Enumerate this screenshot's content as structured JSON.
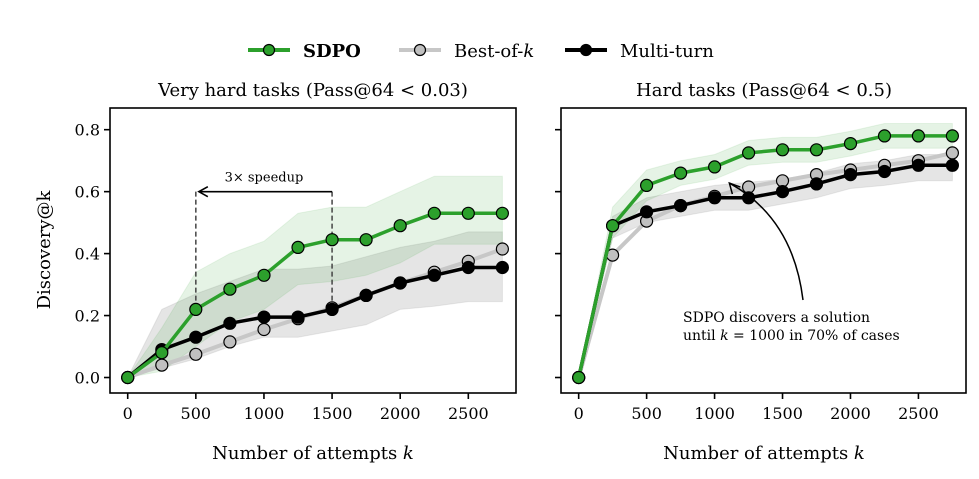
{
  "legend": {
    "items": [
      {
        "key": "sdpo",
        "label": "SDPO",
        "bold": true
      },
      {
        "key": "bestofk",
        "label_pre": "Best-of-",
        "label_italic": "k",
        "bold": false
      },
      {
        "key": "multiturn",
        "label": "Multi-turn",
        "bold": false
      }
    ]
  },
  "styles": {
    "sdpo": {
      "line": "#2ca02c",
      "marker": "#2ca02c",
      "band": "#2ca02c",
      "band_opacity": 0.12
    },
    "bestofk": {
      "line": "#c7c7c7",
      "marker": "#c0c0c0",
      "band": "#999999",
      "band_opacity": 0.25
    },
    "multiturn": {
      "line": "#000000",
      "marker": "#000000",
      "band": "#999999",
      "band_opacity": 0.25
    }
  },
  "chart_data": [
    {
      "type": "line",
      "title": "Very hard tasks (Pass@64 < 0.03)",
      "xlabel_pre": "Number of attempts ",
      "xlabel_italic": "k",
      "ylabel": "Discovery@k",
      "xlim": [
        -130,
        2850
      ],
      "ylim": [
        -0.05,
        0.87
      ],
      "xticks": [
        0,
        500,
        1000,
        1500,
        2000,
        2500
      ],
      "yticks": [
        0.0,
        0.2,
        0.4,
        0.6,
        0.8
      ],
      "ytick_labels": [
        "0.0",
        "0.2",
        "0.4",
        "0.6",
        "0.8"
      ],
      "show_ytick_labels": true,
      "grid": false,
      "x": [
        0,
        250,
        500,
        750,
        1000,
        1250,
        1500,
        1750,
        2000,
        2250,
        2500,
        2750
      ],
      "series": [
        {
          "name": "Best-of-k",
          "key": "bestofk",
          "values": [
            0,
            0.04,
            0.075,
            0.115,
            0.155,
            0.19,
            0.225,
            0.265,
            0.305,
            0.34,
            0.375,
            0.415
          ]
        },
        {
          "name": "Multi-turn",
          "key": "multiturn",
          "values": [
            0,
            0.09,
            0.13,
            0.175,
            0.195,
            0.195,
            0.22,
            0.265,
            0.305,
            0.33,
            0.355,
            0.355
          ],
          "band_low": [
            0,
            0.03,
            0.06,
            0.1,
            0.13,
            0.13,
            0.15,
            0.17,
            0.22,
            0.23,
            0.245,
            0.245
          ],
          "band_high": [
            0,
            0.22,
            0.27,
            0.31,
            0.35,
            0.35,
            0.36,
            0.39,
            0.42,
            0.44,
            0.47,
            0.47
          ]
        },
        {
          "name": "SDPO",
          "key": "sdpo",
          "values": [
            0,
            0.08,
            0.22,
            0.285,
            0.33,
            0.42,
            0.445,
            0.445,
            0.49,
            0.53,
            0.53,
            0.53
          ],
          "band_low": [
            0,
            0.02,
            0.1,
            0.18,
            0.22,
            0.3,
            0.31,
            0.33,
            0.37,
            0.43,
            0.43,
            0.43
          ],
          "band_high": [
            0,
            0.16,
            0.34,
            0.4,
            0.44,
            0.53,
            0.55,
            0.55,
            0.6,
            0.65,
            0.65,
            0.65
          ]
        }
      ],
      "annotations": [
        {
          "type": "speedup",
          "text": "3× speedup",
          "x_from": 1500,
          "x_to": 500,
          "y_arrow": 0.6
        }
      ]
    },
    {
      "type": "line",
      "title": "Hard tasks (Pass@64 < 0.5)",
      "xlabel_pre": "Number of attempts ",
      "xlabel_italic": "k",
      "ylabel": "",
      "xlim": [
        -130,
        2850
      ],
      "ylim": [
        -0.05,
        0.87
      ],
      "xticks": [
        0,
        500,
        1000,
        1500,
        2000,
        2500
      ],
      "yticks": [
        0.0,
        0.2,
        0.4,
        0.6,
        0.8
      ],
      "show_ytick_labels": false,
      "grid": false,
      "x": [
        0,
        250,
        500,
        750,
        1000,
        1250,
        1500,
        1750,
        2000,
        2250,
        2500,
        2750
      ],
      "series": [
        {
          "name": "Best-of-k",
          "key": "bestofk",
          "values": [
            0,
            0.395,
            0.505,
            0.555,
            0.585,
            0.615,
            0.635,
            0.655,
            0.67,
            0.685,
            0.7,
            0.725
          ]
        },
        {
          "name": "Multi-turn",
          "key": "multiturn",
          "values": [
            0,
            0.49,
            0.535,
            0.555,
            0.58,
            0.58,
            0.6,
            0.625,
            0.655,
            0.665,
            0.685,
            0.685
          ],
          "band_low": [
            0,
            0.45,
            0.5,
            0.52,
            0.54,
            0.54,
            0.56,
            0.58,
            0.61,
            0.62,
            0.635,
            0.635
          ],
          "band_high": [
            0,
            0.52,
            0.58,
            0.6,
            0.62,
            0.63,
            0.64,
            0.66,
            0.69,
            0.7,
            0.72,
            0.72
          ]
        },
        {
          "name": "SDPO",
          "key": "sdpo",
          "values": [
            0,
            0.49,
            0.62,
            0.66,
            0.68,
            0.725,
            0.735,
            0.735,
            0.755,
            0.78,
            0.78,
            0.78
          ],
          "band_low": [
            0,
            0.45,
            0.57,
            0.62,
            0.64,
            0.685,
            0.695,
            0.695,
            0.715,
            0.74,
            0.74,
            0.74
          ],
          "band_high": [
            0,
            0.55,
            0.67,
            0.7,
            0.72,
            0.765,
            0.775,
            0.775,
            0.795,
            0.82,
            0.82,
            0.82
          ]
        }
      ],
      "annotations": [
        {
          "type": "callout",
          "line1": "SDPO discovers a solution",
          "line2_pre": "until ",
          "line2_italic": "k",
          "line2_post": " = 1000 in 70% of cases",
          "target_x": 1050,
          "target_y": 0.66
        }
      ]
    }
  ]
}
